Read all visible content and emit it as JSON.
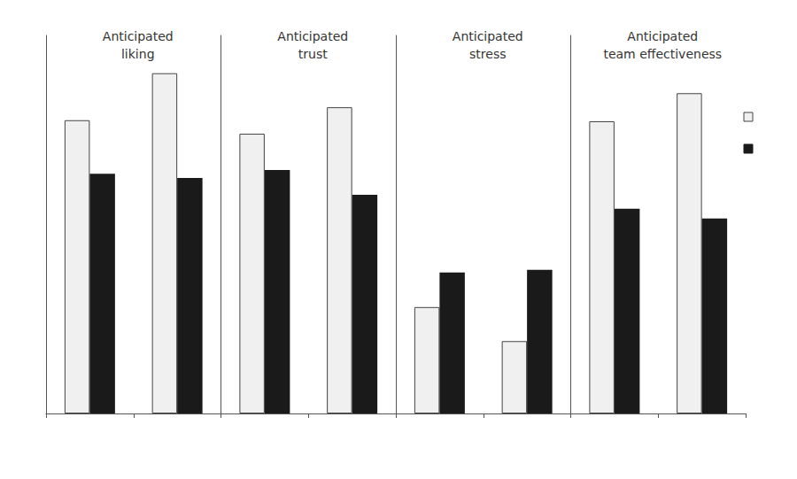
{
  "chart_data": [
    {
      "type": "bar",
      "title": "Anticipated liking",
      "categories": [
        null,
        null
      ],
      "series": [
        {
          "color": "#f0f0f0",
          "values": [
            5.43,
            6.3
          ]
        },
        {
          "color": "#1a1a1a",
          "values": [
            4.44,
            4.36
          ]
        }
      ],
      "ylim": [
        0,
        7
      ],
      "yticks": [],
      "grid": false,
      "tick_labels": false
    },
    {
      "type": "bar",
      "title": "Anticipated trust",
      "categories": [
        null,
        null
      ],
      "series": [
        {
          "color": "#f0f0f0",
          "values": [
            5.18,
            5.67
          ]
        },
        {
          "color": "#1a1a1a",
          "values": [
            4.51,
            4.05
          ]
        }
      ],
      "ylim": [
        0,
        7
      ],
      "yticks": [],
      "grid": false,
      "tick_labels": false
    },
    {
      "type": "bar",
      "title": "Anticipated stress",
      "categories": [
        null,
        null
      ],
      "series": [
        {
          "color": "#f0f0f0",
          "values": [
            1.97,
            1.34
          ]
        },
        {
          "color": "#1a1a1a",
          "values": [
            2.61,
            2.66
          ]
        }
      ],
      "ylim": [
        0,
        7
      ],
      "yticks": [],
      "grid": false,
      "tick_labels": false
    },
    {
      "type": "bar",
      "title": "Anticipated team effectiveness",
      "categories": [
        null,
        null
      ],
      "series": [
        {
          "color": "#f0f0f0",
          "values": [
            5.41,
            5.93
          ]
        },
        {
          "color": "#1a1a1a",
          "values": [
            3.79,
            3.61
          ]
        }
      ],
      "ylim": [
        0,
        7
      ],
      "yticks": [],
      "grid": false,
      "tick_labels": false,
      "legend": "right"
    }
  ]
}
